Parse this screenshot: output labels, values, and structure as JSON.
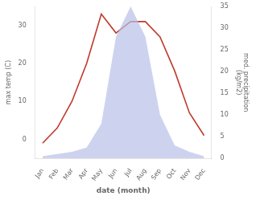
{
  "chart_data": {
    "type": "line",
    "xlabel": "date (month)",
    "ylabel": "max temp (C)",
    "y2label": "med. precipitation\n(kg/m2)",
    "categories": [
      "Jan",
      "Feb",
      "Mar",
      "Apr",
      "May",
      "Jun",
      "Jul",
      "Aug",
      "Sep",
      "Oct",
      "Nov",
      "Dec"
    ],
    "series": [
      {
        "type": "area",
        "axis": "y2",
        "color": "#b8c0e8",
        "values": [
          0.5,
          1.0,
          1.5,
          2.5,
          8,
          28,
          35,
          28,
          10,
          3,
          1.5,
          0.5
        ]
      },
      {
        "type": "line",
        "color": "#c0392b",
        "values": [
          -1,
          3,
          10,
          20,
          33,
          28,
          31,
          31,
          27,
          18,
          7,
          1
        ]
      }
    ],
    "ylim": [
      -5,
      35
    ],
    "yticks": [
      0,
      10,
      20,
      30
    ],
    "y2lim": [
      0,
      35
    ],
    "y2ticks": [
      0,
      5,
      10,
      15,
      20,
      25,
      30,
      35
    ],
    "grid": false
  }
}
